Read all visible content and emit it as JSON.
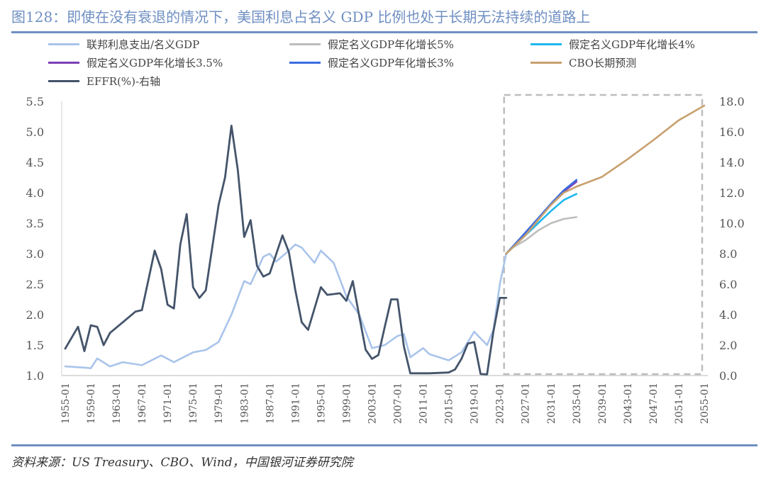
{
  "title": "图128：即使在没有衰退的情况下，美国利息占名义 GDP 比例也处于长期无法持续的道路上",
  "source": "资料来源：US Treasury、CBO、Wind，中国银河证券研究院",
  "chart_data": {
    "type": "line",
    "title": "图128：即使在没有衰退的情况下，美国利息占名义 GDP 比例也处于长期无法持续的道路上",
    "xlabel": "",
    "ylabel": "",
    "y2label": "",
    "xlim": [
      1955,
      2055
    ],
    "ylim": [
      1.0,
      5.5
    ],
    "y2lim": [
      0,
      18
    ],
    "yticks": [
      "1.0",
      "1.5",
      "2.0",
      "2.5",
      "3.0",
      "3.5",
      "4.0",
      "4.5",
      "5.0",
      "5.5"
    ],
    "y2ticks": [
      "0.0",
      "2.0",
      "4.0",
      "6.0",
      "8.0",
      "10.0",
      "12.0",
      "14.0",
      "16.0",
      "18.0"
    ],
    "xticks": [
      "1955-01",
      "1959-01",
      "1963-01",
      "1967-01",
      "1971-01",
      "1975-01",
      "1979-01",
      "1983-01",
      "1987-01",
      "1991-01",
      "1995-01",
      "1999-01",
      "2003-01",
      "2007-01",
      "2011-01",
      "2015-01",
      "2019-01",
      "2023-01",
      "2027-01",
      "2031-01",
      "2035-01",
      "2039-01",
      "2043-01",
      "2047-01",
      "2051-01",
      "2055-01"
    ],
    "xtick_years": [
      1955,
      1959,
      1963,
      1967,
      1971,
      1975,
      1979,
      1983,
      1987,
      1991,
      1995,
      1999,
      2003,
      2007,
      2011,
      2015,
      2019,
      2023,
      2027,
      2031,
      2035,
      2039,
      2043,
      2047,
      2051,
      2055
    ],
    "projection_box": [
      2024,
      2055
    ],
    "series": [
      {
        "name": "联邦利息支出/名义GDP",
        "color": "#a9c4ea",
        "axis": "left",
        "x": [
          1955,
          1958,
          1959,
          1960,
          1962,
          1964,
          1967,
          1970,
          1972,
          1975,
          1977,
          1979,
          1981,
          1983,
          1984,
          1986,
          1987,
          1988,
          1990,
          1991,
          1992,
          1994,
          1995,
          1997,
          1999,
          2001,
          2003,
          2005,
          2007,
          2008,
          2009,
          2011,
          2012,
          2015,
          2017,
          2019,
          2021,
          2022,
          2023,
          2024
        ],
        "values": [
          1.15,
          1.13,
          1.12,
          1.28,
          1.15,
          1.22,
          1.17,
          1.33,
          1.22,
          1.38,
          1.42,
          1.55,
          2.0,
          2.55,
          2.5,
          2.95,
          3.0,
          2.87,
          3.05,
          3.15,
          3.1,
          2.85,
          3.05,
          2.85,
          2.3,
          2.0,
          1.45,
          1.5,
          1.65,
          1.68,
          1.3,
          1.45,
          1.35,
          1.25,
          1.38,
          1.72,
          1.5,
          1.75,
          2.5,
          3.0
        ]
      },
      {
        "name": "假定名义GDP年化增长5%",
        "color": "#bdbdbd",
        "axis": "left",
        "x": [
          2024,
          2025,
          2027,
          2029,
          2031,
          2033,
          2035
        ],
        "values": [
          3.0,
          3.1,
          3.22,
          3.38,
          3.5,
          3.57,
          3.6
        ]
      },
      {
        "name": "假定名义GDP年化增长4%",
        "color": "#1fb8ee",
        "axis": "left",
        "x": [
          2024,
          2026,
          2029,
          2031,
          2033,
          2035
        ],
        "values": [
          3.0,
          3.2,
          3.5,
          3.7,
          3.88,
          3.98
        ]
      },
      {
        "name": "假定名义GDP年化增长3.5%",
        "color": "#7b3fb5",
        "axis": "left",
        "x": [
          2024,
          2026,
          2029,
          2031,
          2033,
          2035
        ],
        "values": [
          3.0,
          3.22,
          3.56,
          3.8,
          4.02,
          4.18
        ]
      },
      {
        "name": "假定名义GDP年化增长3%",
        "color": "#3d6de0",
        "axis": "left",
        "x": [
          2024,
          2026,
          2029,
          2031,
          2033,
          2035
        ],
        "values": [
          3.0,
          3.23,
          3.58,
          3.82,
          4.04,
          4.21
        ]
      },
      {
        "name": "CBO长期预测",
        "color": "#c8a06e",
        "axis": "left",
        "x": [
          2024,
          2025,
          2027,
          2029,
          2031,
          2033,
          2035,
          2039,
          2043,
          2047,
          2051,
          2055
        ],
        "values": [
          3.0,
          3.1,
          3.3,
          3.55,
          3.8,
          4.0,
          4.1,
          4.26,
          4.55,
          4.86,
          5.19,
          5.43
        ]
      },
      {
        "name": "EFFR(%)-右轴",
        "color": "#44546a",
        "axis": "right",
        "x": [
          1955,
          1957,
          1958,
          1959,
          1960,
          1961,
          1962,
          1964,
          1966,
          1967,
          1969,
          1970,
          1971,
          1972,
          1973,
          1974,
          1975,
          1976,
          1977,
          1979,
          1980,
          1981,
          1982,
          1983,
          1984,
          1985,
          1986,
          1987,
          1989,
          1990,
          1991,
          1992,
          1993,
          1995,
          1996,
          1998,
          1999,
          2000,
          2001,
          2002,
          2003,
          2004,
          2005,
          2006,
          2007,
          2008,
          2009,
          2012,
          2015,
          2016,
          2017,
          2018,
          2019,
          2020,
          2021,
          2022,
          2023,
          2024
        ],
        "values": [
          1.77,
          3.2,
          1.6,
          3.3,
          3.2,
          2.0,
          2.8,
          3.5,
          4.2,
          4.3,
          8.2,
          7.0,
          4.65,
          4.4,
          8.6,
          10.6,
          5.8,
          5.1,
          5.6,
          11.2,
          13.0,
          16.4,
          13.5,
          9.1,
          10.2,
          7.2,
          6.5,
          6.7,
          9.2,
          8.1,
          5.6,
          3.5,
          3.0,
          5.8,
          5.3,
          5.4,
          4.9,
          6.2,
          3.9,
          1.7,
          1.1,
          1.35,
          3.2,
          5.0,
          5.0,
          1.9,
          0.15,
          0.15,
          0.2,
          0.4,
          1.1,
          2.1,
          2.2,
          0.1,
          0.08,
          2.9,
          5.1,
          5.1
        ]
      }
    ]
  }
}
